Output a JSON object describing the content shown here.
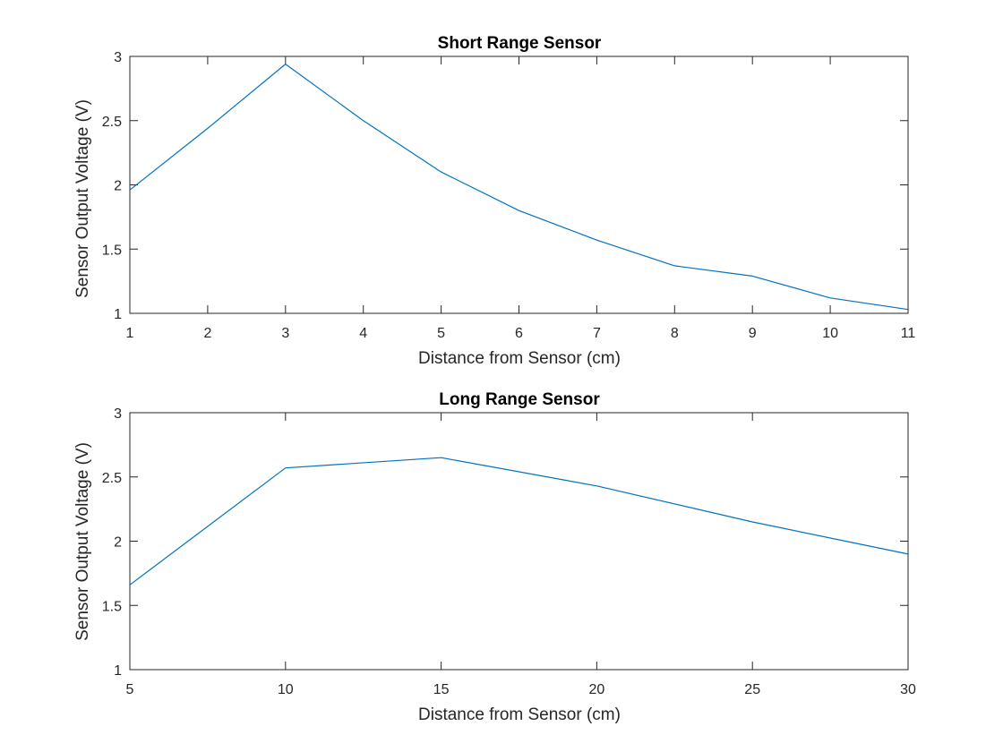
{
  "chart_data": [
    {
      "type": "line",
      "title": "Short Range Sensor",
      "xlabel": "Distance from Sensor (cm)",
      "ylabel": "Sensor Output Voltage (V)",
      "xlim": [
        1,
        11
      ],
      "ylim": [
        1,
        3
      ],
      "xticks": [
        1,
        2,
        3,
        4,
        5,
        6,
        7,
        8,
        9,
        10,
        11
      ],
      "yticks": [
        1,
        1.5,
        2,
        2.5,
        3
      ],
      "ytick_labels": [
        "1",
        "1.5",
        "2",
        "2.5",
        "3"
      ],
      "grid": false,
      "series": [
        {
          "color": "#0072BD",
          "x": [
            1,
            2,
            3,
            4,
            5,
            6,
            7,
            8,
            9,
            10,
            11
          ],
          "y": [
            1.96,
            2.44,
            2.94,
            2.5,
            2.1,
            1.8,
            1.57,
            1.37,
            1.29,
            1.12,
            1.03
          ]
        }
      ]
    },
    {
      "type": "line",
      "title": "Long Range Sensor",
      "xlabel": "Distance from Sensor (cm)",
      "ylabel": "Sensor Output Voltage (V)",
      "xlim": [
        5,
        30
      ],
      "ylim": [
        1,
        3
      ],
      "xticks": [
        5,
        10,
        15,
        20,
        25,
        30
      ],
      "yticks": [
        1,
        1.5,
        2,
        2.5,
        3
      ],
      "ytick_labels": [
        "1",
        "1.5",
        "2",
        "2.5",
        "3"
      ],
      "grid": false,
      "series": [
        {
          "color": "#0072BD",
          "x": [
            5,
            10,
            15,
            20,
            25,
            30
          ],
          "y": [
            1.66,
            2.57,
            2.65,
            2.43,
            2.15,
            1.9
          ]
        }
      ]
    }
  ]
}
